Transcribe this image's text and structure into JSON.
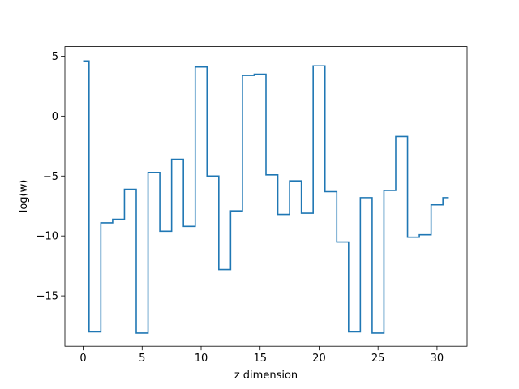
{
  "chart_data": {
    "type": "line",
    "drawstyle": "steps-mid",
    "title": "",
    "xlabel": "z dimension",
    "ylabel": "log(w)",
    "xlim": [
      -1.55,
      32.55
    ],
    "ylim": [
      -19.2,
      5.8
    ],
    "xticks": [
      0,
      5,
      10,
      15,
      20,
      25,
      30
    ],
    "xtick_labels": [
      "0",
      "5",
      "10",
      "15",
      "20",
      "25",
      "30"
    ],
    "yticks": [
      5,
      0,
      -5,
      -10,
      -15
    ],
    "ytick_labels": [
      "5",
      "0",
      "−5",
      "−10",
      "−15"
    ],
    "grid": false,
    "legend": "none",
    "line_color": "#1f77b4",
    "series": [
      {
        "x": [
          0,
          1,
          2,
          3,
          4,
          5,
          6,
          7,
          8,
          9,
          10,
          11,
          12,
          13,
          14,
          15,
          16,
          17,
          18,
          19,
          20,
          21,
          22,
          23,
          24,
          25,
          26,
          27,
          28,
          29,
          30,
          31
        ],
        "values": [
          4.6,
          -18.0,
          -8.9,
          -8.6,
          -6.1,
          -18.1,
          -4.7,
          -9.6,
          -3.6,
          -9.2,
          4.1,
          -5.0,
          -12.8,
          -7.9,
          3.4,
          3.5,
          -4.9,
          -8.2,
          -5.4,
          -8.1,
          4.2,
          -6.3,
          -10.5,
          -18.0,
          -6.8,
          -18.1,
          -6.2,
          -1.7,
          -10.1,
          -9.9,
          -7.4,
          -6.8
        ]
      }
    ]
  }
}
